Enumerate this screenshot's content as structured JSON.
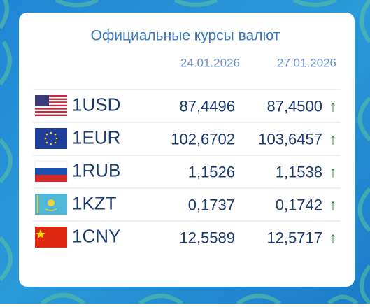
{
  "widget": {
    "title": "Официальные курсы валют",
    "dates": [
      "24.01.2026",
      "27.01.2026"
    ],
    "rows": [
      {
        "code": "1USD",
        "rates": [
          "87,4496",
          "87,4500"
        ],
        "trend": "↑"
      },
      {
        "code": "1EUR",
        "rates": [
          "102,6702",
          "103,6457"
        ],
        "trend": "↑"
      },
      {
        "code": "1RUB",
        "rates": [
          "1,1526",
          "1,1538"
        ],
        "trend": "↑"
      },
      {
        "code": "1KZT",
        "rates": [
          "0,1737",
          "0,1742"
        ],
        "trend": "↑"
      },
      {
        "code": "1CNY",
        "rates": [
          "12,5589",
          "12,5717"
        ],
        "trend": "↑"
      }
    ]
  }
}
